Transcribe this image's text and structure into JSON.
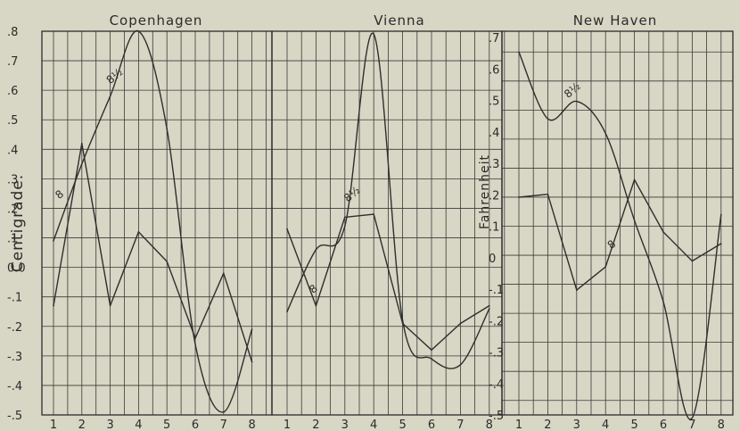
{
  "chart_data": [
    {
      "type": "line",
      "title": "Copenhagen",
      "ylabel": "Centigrade.",
      "x": [
        1,
        2,
        3,
        4,
        5,
        6,
        7,
        8
      ],
      "x_tick_labels": [
        "1",
        "2",
        "3",
        "4",
        "5",
        "6",
        "7",
        "8"
      ],
      "ylim": [
        -0.5,
        0.8
      ],
      "y_tick_labels": [
        ".8",
        ".7",
        ".6",
        ".5",
        ".4",
        ".3",
        ".2",
        ".1",
        "0.0",
        "-.1",
        "-.2",
        "-.3",
        "-.4",
        "-.5"
      ],
      "grid": true,
      "series": [
        {
          "name": "8",
          "smooth": false,
          "values": [
            -0.13,
            0.42,
            -0.13,
            0.12,
            0.02,
            -0.24,
            -0.02,
            -0.32
          ]
        },
        {
          "name": "8½",
          "smooth": true,
          "values": [
            0.09,
            0.35,
            0.58,
            0.8,
            0.47,
            -0.26,
            -0.49,
            -0.21
          ]
        }
      ],
      "annotations": [
        {
          "text": "8",
          "x": 1.2,
          "y": 0.23
        },
        {
          "text": "8½",
          "x": 3.0,
          "y": 0.62
        }
      ]
    },
    {
      "type": "line",
      "title": "Vienna",
      "x": [
        1,
        2,
        3,
        4,
        5,
        6,
        7,
        8
      ],
      "x_tick_labels": [
        "1",
        "2",
        "3",
        "4",
        "5",
        "6",
        "7",
        "8"
      ],
      "ylim": [
        -0.5,
        0.8
      ],
      "grid": true,
      "series": [
        {
          "name": "8",
          "smooth": false,
          "values": [
            0.13,
            -0.13,
            0.17,
            0.18,
            -0.19,
            -0.28,
            -0.19,
            -0.13
          ]
        },
        {
          "name": "8½",
          "smooth": true,
          "values": [
            -0.15,
            0.06,
            0.14,
            0.79,
            -0.18,
            -0.31,
            -0.33,
            -0.14
          ]
        }
      ],
      "annotations": [
        {
          "text": "8",
          "x": 1.9,
          "y": -0.09
        },
        {
          "text": "8½",
          "x": 3.1,
          "y": 0.22
        }
      ]
    },
    {
      "type": "line",
      "title": "New Haven",
      "ylabel": "Fahrenheit",
      "x": [
        1,
        2,
        3,
        4,
        5,
        6,
        7,
        8
      ],
      "x_tick_labels": [
        "1",
        "2",
        "3",
        "4",
        "5",
        "6",
        "7",
        "8"
      ],
      "ylim": [
        -0.55,
        0.75
      ],
      "y_tick_labels": [
        ".7",
        ".6",
        ".5",
        ".4",
        ".3",
        ".2",
        ".1",
        "0",
        "-.1",
        "-.2",
        "-.3",
        "-.4",
        "-.5"
      ],
      "grid": true,
      "series": [
        {
          "name": "8",
          "smooth": false,
          "values": [
            0.2,
            0.21,
            -0.12,
            -0.04,
            0.26,
            0.08,
            -0.02,
            0.04
          ]
        },
        {
          "name": "8½",
          "smooth": true,
          "values": [
            0.7,
            0.47,
            0.53,
            0.42,
            0.12,
            -0.16,
            -0.56,
            0.14
          ]
        }
      ],
      "annotations": [
        {
          "text": "8",
          "x": 4.2,
          "y": 0.02
        },
        {
          "text": "8½",
          "x": 2.7,
          "y": 0.54
        }
      ]
    }
  ]
}
